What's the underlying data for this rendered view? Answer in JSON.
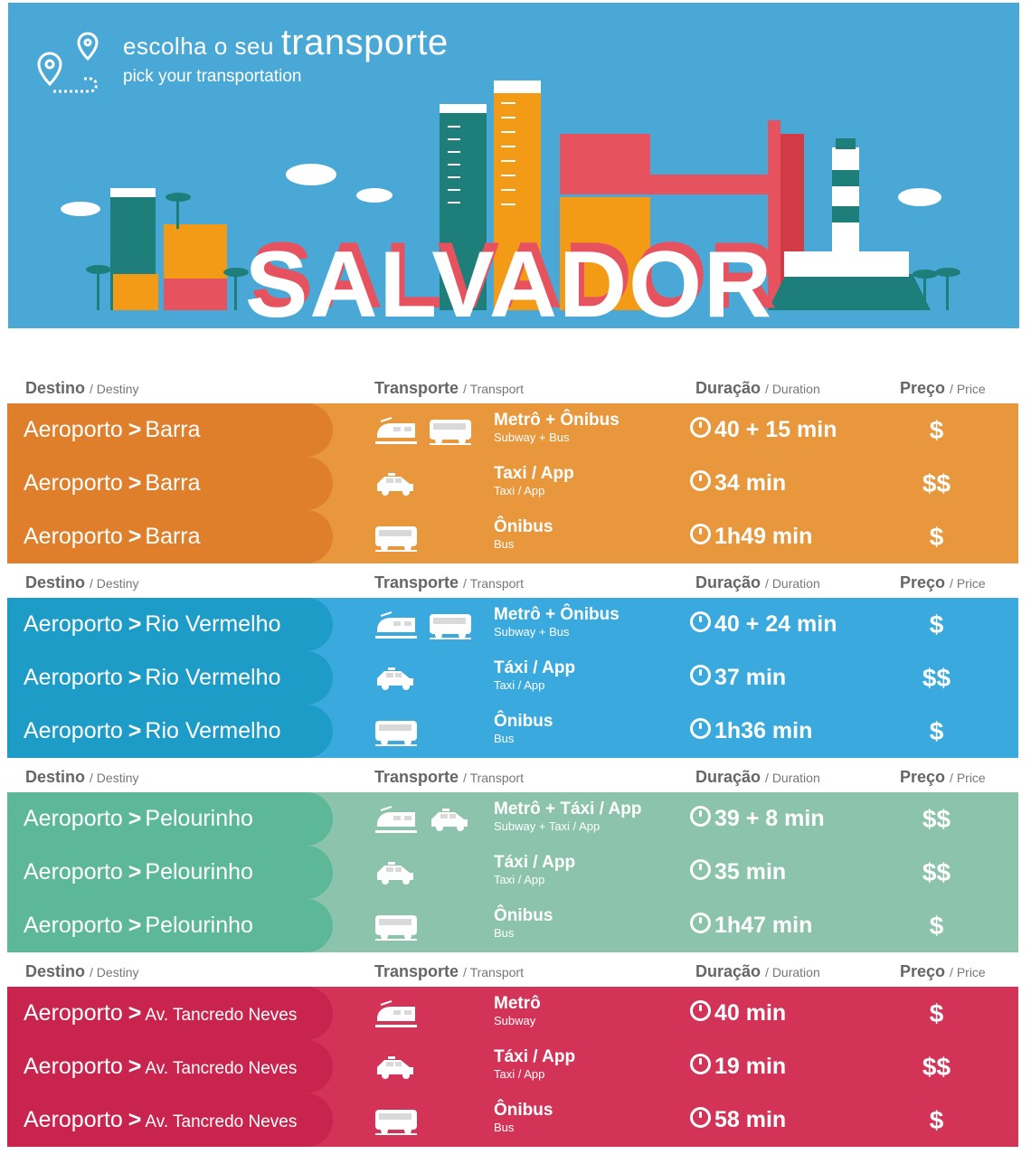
{
  "banner": {
    "title_prefix": "escolha o seu",
    "title_main": "transporte",
    "subtitle": "pick your transportation",
    "city": "SALVADOR",
    "bg_color": "#4aa8d6"
  },
  "headers": {
    "dest_pt": "Destino",
    "dest_en": "/ Destiny",
    "trans_pt": "Transporte",
    "trans_en": "/ Transport",
    "dur_pt": "Duração",
    "dur_en": "/ Duration",
    "price_pt": "Preço",
    "price_en": "/ Price"
  },
  "sections": [
    {
      "colors": {
        "dest": "#df7f2c",
        "row": "#e8973c"
      },
      "rows": [
        {
          "from": "Aeroporto",
          "to": "Barra",
          "icons": [
            "train-icon",
            "bus-icon"
          ],
          "mode": "Metrô + Ônibus",
          "mode_en": "Subway + Bus",
          "duration": "40 + 15 min",
          "price": "$"
        },
        {
          "from": "Aeroporto",
          "to": "Barra",
          "icons": [
            "taxi-icon"
          ],
          "mode": "Taxi / App",
          "mode_en": "Taxi / App",
          "duration": "34 min",
          "price": "$$"
        },
        {
          "from": "Aeroporto",
          "to": "Barra",
          "icons": [
            "bus-icon"
          ],
          "mode": "Ônibus",
          "mode_en": "Bus",
          "duration": "1h49 min",
          "price": "$"
        }
      ]
    },
    {
      "colors": {
        "dest": "#1e9cc8",
        "row": "#3aaade"
      },
      "rows": [
        {
          "from": "Aeroporto",
          "to": "Rio Vermelho",
          "icons": [
            "train-icon",
            "bus-icon"
          ],
          "mode": "Metrô + Ônibus",
          "mode_en": "Subway + Bus",
          "duration": "40 + 24 min",
          "price": "$"
        },
        {
          "from": "Aeroporto",
          "to": "Rio Vermelho",
          "icons": [
            "taxi-icon"
          ],
          "mode": "Táxi / App",
          "mode_en": "Taxi / App",
          "duration": "37 min",
          "price": "$$"
        },
        {
          "from": "Aeroporto",
          "to": "Rio Vermelho",
          "icons": [
            "bus-icon"
          ],
          "mode": "Ônibus",
          "mode_en": "Bus",
          "duration": "1h36 min",
          "price": "$"
        }
      ]
    },
    {
      "colors": {
        "dest": "#5db89a",
        "row": "#8cc3ad"
      },
      "rows": [
        {
          "from": "Aeroporto",
          "to": "Pelourinho",
          "icons": [
            "train-icon",
            "taxi-icon"
          ],
          "mode": "Metrô + Táxi / App",
          "mode_en": "Subway + Taxi / App",
          "duration": "39 + 8 min",
          "price": "$$"
        },
        {
          "from": "Aeroporto",
          "to": "Pelourinho",
          "icons": [
            "taxi-icon"
          ],
          "mode": "Táxi / App",
          "mode_en": "Taxi / App",
          "duration": "35 min",
          "price": "$$"
        },
        {
          "from": "Aeroporto",
          "to": "Pelourinho",
          "icons": [
            "bus-icon"
          ],
          "mode": "Ônibus",
          "mode_en": "Bus",
          "duration": "1h47 min",
          "price": "$"
        }
      ]
    },
    {
      "colors": {
        "dest": "#c8244d",
        "row": "#d33357"
      },
      "rows": [
        {
          "from": "Aeroporto",
          "to": "Av. Tancredo Neves",
          "icons": [
            "train-icon"
          ],
          "mode": "Metrô",
          "mode_en": "Subway",
          "duration": "40 min",
          "price": "$"
        },
        {
          "from": "Aeroporto",
          "to": "Av. Tancredo Neves",
          "icons": [
            "taxi-icon"
          ],
          "mode": "Táxi / App",
          "mode_en": "Taxi / App",
          "duration": "19 min",
          "price": "$$"
        },
        {
          "from": "Aeroporto",
          "to": "Av. Tancredo Neves",
          "icons": [
            "bus-icon"
          ],
          "mode": "Ônibus",
          "mode_en": "Bus",
          "duration": "58 min",
          "price": "$"
        }
      ]
    }
  ]
}
